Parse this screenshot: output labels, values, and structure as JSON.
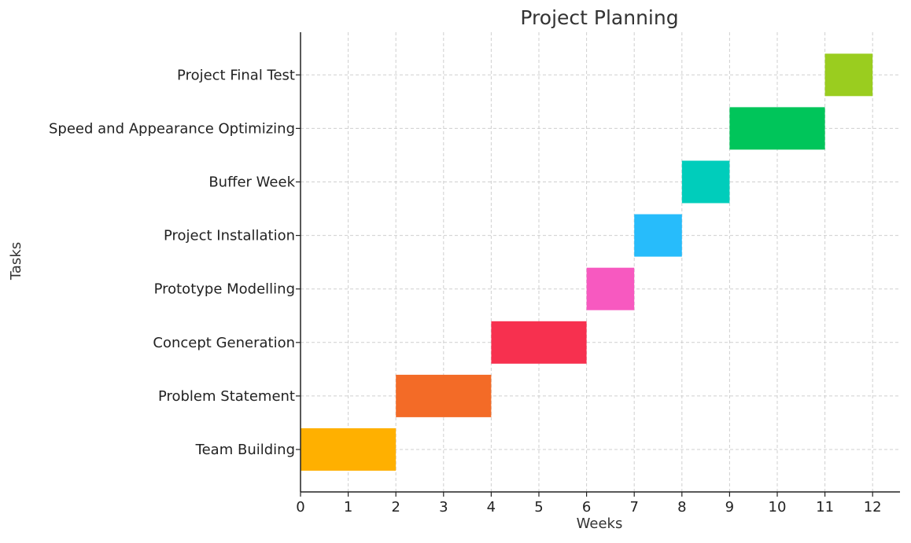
{
  "chart_data": {
    "type": "bar",
    "orientation": "horizontal-gantt",
    "title": "Project Planning",
    "xlabel": "Weeks",
    "ylabel": "Tasks",
    "xlim": [
      0,
      12.6
    ],
    "x_ticks": [
      0,
      1,
      2,
      3,
      4,
      5,
      6,
      7,
      8,
      9,
      10,
      11,
      12
    ],
    "grid": true,
    "tasks": [
      {
        "name": "Team Building",
        "start": 0,
        "end": 2,
        "color": "#FFB000"
      },
      {
        "name": "Problem Statement",
        "start": 2,
        "end": 4,
        "color": "#F36B27"
      },
      {
        "name": "Concept Generation",
        "start": 4,
        "end": 6,
        "color": "#F7304F"
      },
      {
        "name": "Prototype Modelling",
        "start": 6,
        "end": 7,
        "color": "#F759C0"
      },
      {
        "name": "Project Installation",
        "start": 7,
        "end": 8,
        "color": "#27BCFB"
      },
      {
        "name": "Buffer Week",
        "start": 8,
        "end": 9,
        "color": "#00CDBB"
      },
      {
        "name": "Speed and Appearance Optimizing",
        "start": 9,
        "end": 11,
        "color": "#00C55A"
      },
      {
        "name": "Project Final Test",
        "start": 11,
        "end": 12,
        "color": "#9ACD1F"
      }
    ]
  }
}
